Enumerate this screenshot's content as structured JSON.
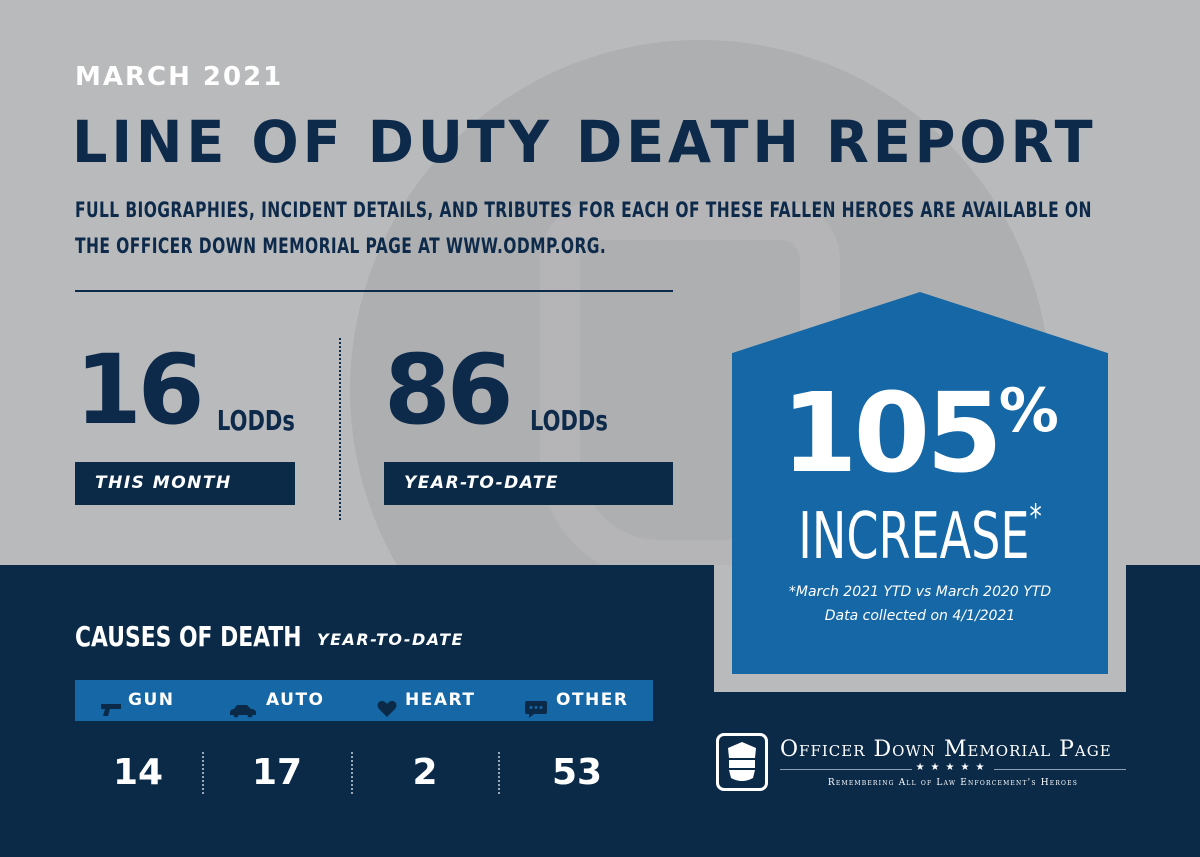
{
  "header": {
    "month": "MARCH 2021",
    "title": "LINE OF DUTY DEATH REPORT",
    "subtitle": "FULL BIOGRAPHIES, INCIDENT DETAILS, AND TRIBUTES FOR EACH OF THESE FALLEN HEROES ARE AVAILABLE ON THE OFFICER DOWN MEMORIAL PAGE AT WWW.ODMP.ORG."
  },
  "stats": {
    "this_month": {
      "value": "16",
      "unit": "LODDs",
      "label": "THIS MONTH"
    },
    "ytd": {
      "value": "86",
      "unit": "LODDs",
      "label": "YEAR-TO-DATE"
    }
  },
  "increase": {
    "number": "105",
    "percent_sign": "%",
    "word": "INCREASE",
    "asterisk": "*",
    "note_line1": "*March 2021 YTD vs March 2020 YTD",
    "note_line2": "Data collected on 4/1/2021"
  },
  "causes": {
    "title": "CAUSES OF DEATH",
    "subtitle": "YEAR-TO-DATE",
    "items": [
      {
        "label": "GUN",
        "icon": "gun-icon",
        "value": "14"
      },
      {
        "label": "AUTO",
        "icon": "car-icon",
        "value": "17"
      },
      {
        "label": "HEART",
        "icon": "heart-icon",
        "value": "2"
      },
      {
        "label": "OTHER",
        "icon": "chat-icon",
        "value": "53"
      }
    ]
  },
  "logo": {
    "name": "Officer Down Memorial Page",
    "stars": "★★★★★",
    "tagline": "Remembering All of Law Enforcement's Heroes"
  },
  "colors": {
    "navy": "#0b2a48",
    "blue": "#1567a6",
    "gray": "#b9babc",
    "white": "#ffffff"
  }
}
